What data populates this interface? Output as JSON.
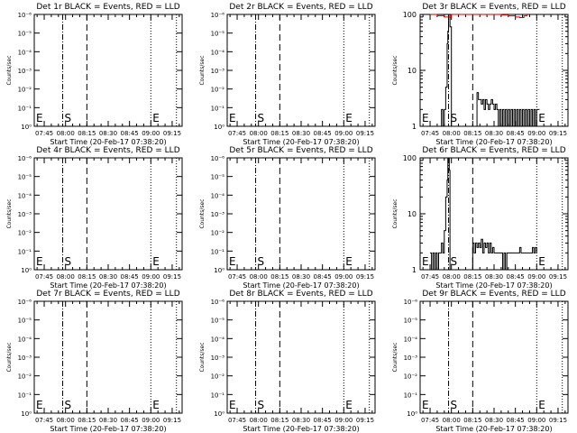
{
  "chart_data": {
    "type": "line",
    "x_tick_labels": [
      "07:45",
      "08:00",
      "08:15",
      "08:30",
      "08:45",
      "09:00",
      "09:15"
    ],
    "x_ticks_minutes": [
      0,
      15,
      30,
      45,
      60,
      75,
      90
    ],
    "x_range_minutes": [
      -7,
      97
    ],
    "xlabel": "Start Time (20-Feb-17 07:38:20)",
    "ylabel": "Counts/sec",
    "markers": [
      {
        "label": "S",
        "x_minutes": 13,
        "style": "dashdot"
      },
      {
        "label": "",
        "x_minutes": 30,
        "style": "dashed"
      },
      {
        "label": "E",
        "x_minutes": 75,
        "style": "dotted"
      }
    ],
    "extra_dotted_minutes": 93,
    "colors": {
      "events": "#000000",
      "lld": "#cc0000"
    },
    "panels": [
      {
        "title": "Det 1r BLACK = Events, RED = LLD",
        "scale": "high",
        "y_tick_labels": [
          "10⁰",
          "10⁻¹",
          "10⁻²",
          "10⁻³",
          "10⁻⁴",
          "10⁻⁵",
          "10⁻⁶"
        ],
        "ylim": [
          0,
          1e-06
        ],
        "events": [],
        "lld": []
      },
      {
        "title": "Det 2r BLACK = Events, RED = LLD",
        "scale": "high",
        "y_tick_labels": [
          "10⁰",
          "10⁻¹",
          "10⁻²",
          "10⁻³",
          "10⁻⁴",
          "10⁻⁵",
          "10⁻⁶"
        ],
        "ylim": [
          0,
          1e-06
        ],
        "events": [],
        "lld": []
      },
      {
        "title": "Det 3r BLACK = Events, RED = LLD",
        "scale": "log",
        "y_tick_labels": [
          "1",
          "10",
          "100"
        ],
        "ylim": [
          1,
          100
        ],
        "events": [
          [
            7,
            1
          ],
          [
            8,
            2
          ],
          [
            9,
            1
          ],
          [
            10,
            2
          ],
          [
            11,
            5
          ],
          [
            12,
            30
          ],
          [
            12.5,
            50
          ],
          [
            13,
            100
          ],
          [
            13.5,
            100
          ],
          [
            14,
            60
          ],
          [
            15,
            1
          ],
          [
            16,
            1
          ],
          [
            33,
            4
          ],
          [
            34,
            3
          ],
          [
            35,
            3
          ],
          [
            36,
            2.5
          ],
          [
            37,
            3
          ],
          [
            38,
            2
          ],
          [
            39,
            3
          ],
          [
            40,
            2.5
          ],
          [
            41,
            2
          ],
          [
            42,
            2.5
          ],
          [
            43,
            3
          ],
          [
            44,
            2.5
          ],
          [
            45,
            2
          ],
          [
            46,
            2.5
          ],
          [
            47,
            2
          ],
          [
            48,
            1
          ],
          [
            49,
            2
          ],
          [
            50,
            1
          ],
          [
            51,
            2
          ],
          [
            52,
            1
          ],
          [
            53,
            2
          ],
          [
            54,
            1
          ],
          [
            55,
            2
          ],
          [
            56,
            1
          ],
          [
            57,
            2
          ],
          [
            58,
            1
          ],
          [
            59,
            2
          ],
          [
            60,
            1
          ],
          [
            61,
            2
          ],
          [
            62,
            1
          ],
          [
            63,
            2
          ],
          [
            64,
            1
          ],
          [
            65,
            2
          ],
          [
            66,
            1
          ],
          [
            67,
            2
          ],
          [
            68,
            1
          ],
          [
            69,
            2
          ],
          [
            70,
            1
          ],
          [
            71,
            2
          ],
          [
            72,
            1
          ],
          [
            73,
            2
          ],
          [
            74,
            1
          ],
          [
            75,
            2
          ],
          [
            76,
            2
          ],
          [
            77,
            2
          ]
        ],
        "lld": [
          [
            0,
            100
          ],
          [
            5,
            95
          ],
          [
            10,
            90
          ],
          [
            15,
            100
          ],
          [
            20,
            100
          ],
          [
            40,
            100
          ],
          [
            50,
            98
          ],
          [
            55,
            94
          ],
          [
            60,
            90
          ],
          [
            63,
            88
          ],
          [
            66,
            94
          ],
          [
            68,
            100
          ]
        ]
      },
      {
        "title": "Det 4r BLACK = Events, RED = LLD",
        "scale": "high",
        "y_tick_labels": [
          "10⁰",
          "10⁻¹",
          "10⁻²",
          "10⁻³",
          "10⁻⁴",
          "10⁻⁵",
          "10⁻⁶"
        ],
        "ylim": [
          0,
          1e-06
        ],
        "events": [],
        "lld": []
      },
      {
        "title": "Det 5r BLACK = Events, RED = LLD",
        "scale": "high",
        "y_tick_labels": [
          "10⁰",
          "10⁻¹",
          "10⁻²",
          "10⁻³",
          "10⁻⁴",
          "10⁻⁵",
          "10⁻⁶"
        ],
        "ylim": [
          0,
          1e-06
        ],
        "events": [],
        "lld": []
      },
      {
        "title": "Det 6r BLACK = Events, RED = LLD",
        "scale": "log",
        "y_tick_labels": [
          "1",
          "10",
          "100"
        ],
        "ylim": [
          1,
          100
        ],
        "events": [
          [
            0,
            2
          ],
          [
            1,
            1
          ],
          [
            2,
            2
          ],
          [
            3,
            1
          ],
          [
            4,
            2
          ],
          [
            5,
            1
          ],
          [
            6,
            2
          ],
          [
            7,
            2
          ],
          [
            8,
            3
          ],
          [
            9,
            2
          ],
          [
            10,
            5
          ],
          [
            11,
            20
          ],
          [
            12,
            40
          ],
          [
            12.5,
            100
          ],
          [
            13,
            100
          ],
          [
            13.5,
            60
          ],
          [
            14,
            1
          ],
          [
            30,
            3
          ],
          [
            31,
            2
          ],
          [
            32,
            3
          ],
          [
            33,
            2.5
          ],
          [
            34,
            3
          ],
          [
            35,
            2.5
          ],
          [
            36,
            3.5
          ],
          [
            37,
            2
          ],
          [
            38,
            3
          ],
          [
            39,
            2.5
          ],
          [
            40,
            3
          ],
          [
            41,
            2
          ],
          [
            42,
            3
          ],
          [
            43,
            2
          ],
          [
            44,
            2.5
          ],
          [
            45,
            2
          ],
          [
            46,
            2
          ],
          [
            47,
            2
          ],
          [
            48,
            2
          ],
          [
            49,
            2
          ],
          [
            50,
            2
          ],
          [
            51,
            1
          ],
          [
            52,
            2
          ],
          [
            53,
            1
          ],
          [
            54,
            2
          ],
          [
            55,
            2
          ],
          [
            56,
            2
          ],
          [
            57,
            2
          ],
          [
            58,
            2
          ],
          [
            59,
            2
          ],
          [
            60,
            2
          ],
          [
            61,
            2
          ],
          [
            62,
            2
          ],
          [
            63,
            2.5
          ],
          [
            64,
            2
          ],
          [
            65,
            2
          ],
          [
            66,
            2
          ],
          [
            67,
            2
          ],
          [
            68,
            2
          ],
          [
            69,
            2
          ],
          [
            70,
            2
          ],
          [
            71,
            2
          ],
          [
            72,
            2.5
          ],
          [
            73,
            2
          ],
          [
            74,
            2.5
          ],
          [
            75,
            2
          ]
        ],
        "lld": []
      },
      {
        "title": "Det 7r BLACK = Events, RED = LLD",
        "scale": "high",
        "y_tick_labels": [
          "10⁰",
          "10⁻¹",
          "10⁻²",
          "10⁻³",
          "10⁻⁴",
          "10⁻⁵",
          "10⁻⁶"
        ],
        "ylim": [
          0,
          1e-06
        ],
        "events": [],
        "lld": []
      },
      {
        "title": "Det 8r BLACK = Events, RED = LLD",
        "scale": "high",
        "y_tick_labels": [
          "10⁰",
          "10⁻¹",
          "10⁻²",
          "10⁻³",
          "10⁻⁴",
          "10⁻⁵",
          "10⁻⁶"
        ],
        "ylim": [
          0,
          1e-06
        ],
        "events": [],
        "lld": []
      },
      {
        "title": "Det 9r BLACK = Events, RED = LLD",
        "scale": "high",
        "y_tick_labels": [
          "10⁰",
          "10⁻¹",
          "10⁻²",
          "10⁻³",
          "10⁻⁴",
          "10⁻⁵",
          "10⁻⁶"
        ],
        "ylim": [
          0,
          1e-06
        ],
        "events": [],
        "lld": []
      }
    ]
  }
}
